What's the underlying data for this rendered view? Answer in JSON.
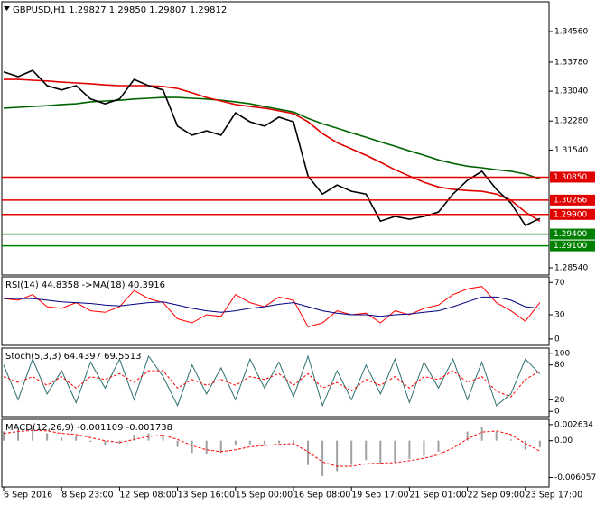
{
  "chart_data": [
    {
      "type": "line",
      "title": "GBPUSD,H1 1.29827 1.29850 1.29807 1.29812",
      "categories": [
        "6 Sep 2016",
        null,
        null,
        null,
        "8 Sep 23:00",
        null,
        null,
        null,
        "12 Sep 08:00",
        null,
        null,
        null,
        "13 Sep 16:00",
        null,
        null,
        null,
        "15 Sep 00:00",
        null,
        null,
        null,
        "16 Sep 08:00",
        null,
        null,
        null,
        "19 Sep 17:00",
        null,
        null,
        null,
        "21 Sep 01:00",
        null,
        null,
        null,
        "22 Sep 09:00",
        null,
        null,
        null,
        "23 Sep 17:00",
        null
      ],
      "ylim": [
        1.28356,
        1.35318
      ],
      "yticks": [
        {
          "value": 1.3456,
          "label": "1.34560"
        },
        {
          "value": 1.3378,
          "label": "1.33780"
        },
        {
          "value": 1.3304,
          "label": "1.33040"
        },
        {
          "value": 1.3228,
          "label": "1.32280"
        },
        {
          "value": 1.3154,
          "label": "1.31540"
        },
        {
          "value": 1.2854,
          "label": "1.28540"
        }
      ],
      "levels": [
        {
          "value": 1.3085,
          "label": "1.30850",
          "color": "#e00000"
        },
        {
          "value": 1.30266,
          "label": "1.30266",
          "color": "#e00000"
        },
        {
          "value": 1.299,
          "label": "1.29900",
          "color": "#e00000"
        },
        {
          "value": 1.294,
          "label": "1.29400",
          "color": "#008000"
        },
        {
          "value": 1.291,
          "label": "1.29100",
          "color": "#008000"
        }
      ],
      "series": [
        {
          "color": "#006400",
          "values": [
            1.3261,
            1.3263,
            1.3265,
            1.3267,
            1.327,
            1.3272,
            1.3277,
            1.3279,
            1.3281,
            1.3284,
            1.3286,
            1.3288,
            1.3288,
            1.3286,
            1.3284,
            1.3281,
            1.3277,
            1.3272,
            1.3265,
            1.3258,
            1.3251,
            1.3235,
            1.3221,
            1.321,
            1.3198,
            1.3187,
            1.3175,
            1.3164,
            1.3152,
            1.3141,
            1.3129,
            1.312,
            1.3113,
            1.3109,
            1.3104,
            1.31,
            1.3093,
            1.3081
          ]
        },
        {
          "color": "#e00000",
          "values": [
            1.3334,
            1.3334,
            1.3332,
            1.333,
            1.3327,
            1.3325,
            1.3323,
            1.332,
            1.3318,
            1.3318,
            1.3318,
            1.3316,
            1.3311,
            1.33,
            1.3288,
            1.3279,
            1.327,
            1.3265,
            1.3261,
            1.3254,
            1.3247,
            1.3226,
            1.3196,
            1.3173,
            1.3157,
            1.3141,
            1.3123,
            1.3104,
            1.3088,
            1.3072,
            1.306,
            1.3054,
            1.3051,
            1.3049,
            1.3042,
            1.3026,
            1.2996,
            1.2973
          ]
        },
        {
          "color": "#000000",
          "values": [
            1.3353,
            1.3341,
            1.3357,
            1.3318,
            1.3307,
            1.3318,
            1.3284,
            1.3272,
            1.3284,
            1.3334,
            1.3318,
            1.3307,
            1.3215,
            1.3192,
            1.3203,
            1.3192,
            1.3249,
            1.3226,
            1.3215,
            1.3238,
            1.3226,
            1.3088,
            1.3042,
            1.3065,
            1.3049,
            1.3042,
            1.2973,
            1.2985,
            1.2978,
            1.2985,
            1.2996,
            1.3042,
            1.3077,
            1.31,
            1.3054,
            1.3019,
            1.2962,
            1.298
          ]
        }
      ]
    },
    {
      "type": "line",
      "title": "RSI(14) 44.8358 ->MA(18) 40.3916",
      "ylim": [
        -8,
        77
      ],
      "yticks": [
        70,
        30,
        0
      ],
      "series": [
        {
          "color": "#ff0000",
          "values": [
            50,
            48,
            55,
            40,
            38,
            45,
            35,
            33,
            40,
            60,
            50,
            45,
            25,
            20,
            30,
            28,
            55,
            45,
            40,
            52,
            48,
            15,
            20,
            35,
            30,
            32,
            20,
            35,
            30,
            38,
            42,
            55,
            62,
            65,
            45,
            35,
            22,
            45
          ]
        },
        {
          "color": "#000080",
          "values": [
            50,
            50,
            50,
            48,
            46,
            45,
            44,
            42,
            41,
            43,
            45,
            46,
            42,
            38,
            35,
            33,
            35,
            38,
            40,
            43,
            45,
            40,
            35,
            32,
            30,
            30,
            28,
            30,
            31,
            33,
            35,
            40,
            46,
            52,
            52,
            48,
            40,
            38
          ]
        }
      ]
    },
    {
      "type": "line",
      "title": "Stoch(5,3,3) 64.4397 69.5513",
      "ylim": [
        -9,
        109
      ],
      "yticks": [
        100,
        80,
        20,
        0
      ],
      "series": [
        {
          "color": "#2f6f6f",
          "values": [
            80,
            20,
            90,
            30,
            70,
            15,
            85,
            40,
            90,
            20,
            95,
            60,
            10,
            80,
            30,
            75,
            20,
            90,
            40,
            85,
            25,
            95,
            10,
            70,
            20,
            80,
            30,
            90,
            15,
            85,
            40,
            90,
            20,
            85,
            10,
            30,
            90,
            64.4
          ]
        },
        {
          "color": "#ff0000",
          "dash": true,
          "values": [
            60,
            50,
            60,
            45,
            60,
            40,
            60,
            55,
            65,
            50,
            70,
            70,
            40,
            55,
            45,
            55,
            45,
            60,
            55,
            65,
            45,
            65,
            40,
            50,
            35,
            55,
            45,
            60,
            40,
            60,
            55,
            70,
            50,
            60,
            35,
            25,
            55,
            69.6
          ]
        }
      ]
    },
    {
      "type": "bar",
      "title": "MACD(12,26,9) -0.001109 -0.001738",
      "ylim": [
        -0.00761,
        0.00351
      ],
      "yticks": [
        0.002634,
        {
          "value": 0,
          "label": "0.00"
        },
        -0.006057
      ],
      "series": [
        {
          "type": "bar",
          "color": "#a0a0a0",
          "values": [
            0.0015,
            0.0018,
            0.002,
            0.0012,
            0.0005,
            0.0008,
            -0.0002,
            -0.0008,
            -0.0005,
            0.001,
            0.0012,
            0.001,
            -0.001,
            -0.002,
            -0.0022,
            -0.002,
            -0.0008,
            -0.0006,
            -0.0008,
            -0.0004,
            -0.0005,
            -0.004,
            -0.0058,
            -0.005,
            -0.004,
            -0.0032,
            -0.0038,
            -0.0035,
            -0.003,
            -0.0025,
            -0.0018,
            0.0,
            0.0015,
            0.0022,
            0.0015,
            0.0002,
            -0.0015,
            -0.0011
          ]
        },
        {
          "type": "line",
          "color": "#ff0000",
          "dash": true,
          "values": [
            0.0012,
            0.0015,
            0.0017,
            0.0016,
            0.0012,
            0.001,
            0.0005,
            0.0,
            -0.0003,
            0.0002,
            0.0007,
            0.0009,
            0.0002,
            -0.0008,
            -0.0015,
            -0.0018,
            -0.0015,
            -0.001,
            -0.0008,
            -0.0006,
            -0.0005,
            -0.0018,
            -0.0035,
            -0.0042,
            -0.0042,
            -0.0038,
            -0.0037,
            -0.0036,
            -0.0033,
            -0.0029,
            -0.0023,
            -0.0012,
            0.0003,
            0.0014,
            0.0016,
            0.001,
            -0.0005,
            -0.0017
          ]
        }
      ]
    }
  ]
}
